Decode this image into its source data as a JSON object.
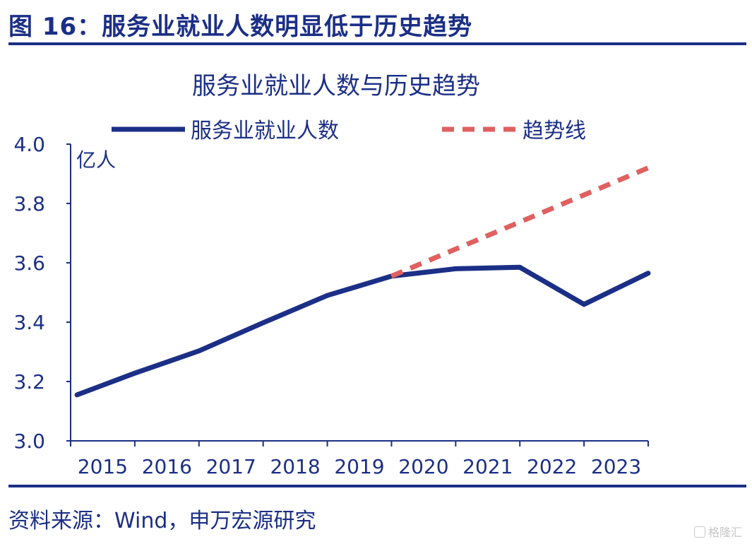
{
  "header": {
    "figure_title": "图 16：服务业就业人数明显低于历史趋势"
  },
  "footer": {
    "source": "资料来源：Wind，申万宏源研究",
    "watermark": "格隆汇"
  },
  "colors": {
    "primary": "#1b2f86",
    "trend": "#e06060",
    "axis": "#1b2f86"
  },
  "chart_data": {
    "type": "line",
    "title": "服务业就业人数与历史趋势",
    "ylabel": "亿人",
    "xlabel": "",
    "ylim": [
      3.0,
      4.0
    ],
    "yticks": [
      "3.0",
      "3.2",
      "3.4",
      "3.6",
      "3.8",
      "4.0"
    ],
    "categories": [
      "2015",
      "2016",
      "2017",
      "2018",
      "2019",
      "2020",
      "2021",
      "2022",
      "2023"
    ],
    "legend_position": "top",
    "grid": false,
    "series": [
      {
        "name": "服务业就业人数",
        "style": "solid",
        "color": "#1b2f86",
        "points": [
          {
            "x": 2014.6,
            "y": 3.155
          },
          {
            "x": 2015.5,
            "y": 3.228
          },
          {
            "x": 2016.5,
            "y": 3.303
          },
          {
            "x": 2017.5,
            "y": 3.398
          },
          {
            "x": 2018.5,
            "y": 3.49
          },
          {
            "x": 2019.5,
            "y": 3.555
          },
          {
            "x": 2020.5,
            "y": 3.58
          },
          {
            "x": 2021.5,
            "y": 3.585
          },
          {
            "x": 2022.5,
            "y": 3.46
          },
          {
            "x": 2023.5,
            "y": 3.565
          }
        ]
      },
      {
        "name": "趋势线",
        "style": "dashed",
        "color": "#e06060",
        "points": [
          {
            "x": 2019.5,
            "y": 3.555
          },
          {
            "x": 2023.5,
            "y": 3.92
          }
        ]
      }
    ]
  }
}
